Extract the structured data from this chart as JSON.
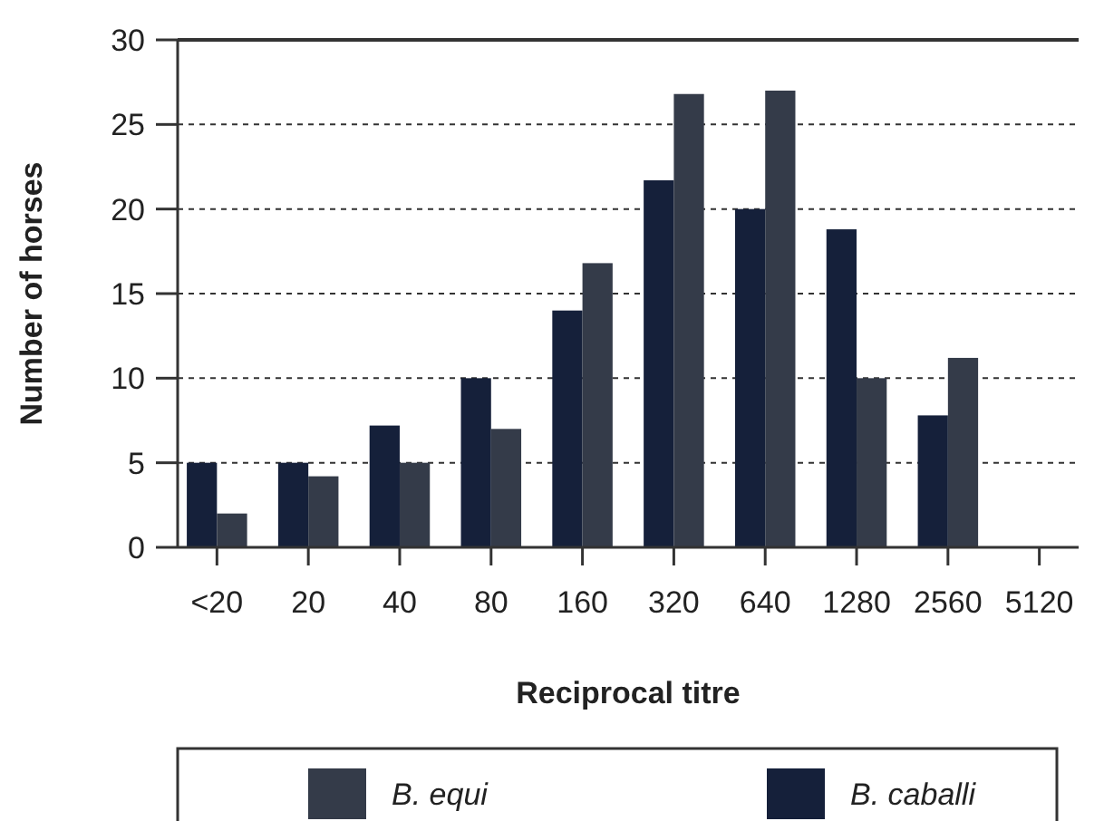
{
  "chart_data": {
    "type": "bar",
    "xlabel": "Reciprocal titre",
    "ylabel": "Number of horses",
    "categories": [
      "<20",
      "20",
      "40",
      "80",
      "160",
      "320",
      "640",
      "1280",
      "2560",
      "5120"
    ],
    "series": [
      {
        "name": "B. caballi",
        "color": "#15203a",
        "values": [
          5,
          5,
          7.2,
          10,
          14,
          21.7,
          20,
          18.8,
          7.8,
          0
        ]
      },
      {
        "name": "B. equi",
        "color": "#343b49",
        "values": [
          2,
          4.2,
          5,
          7,
          16.8,
          26.8,
          27,
          10,
          11.2,
          0
        ]
      }
    ],
    "ylim": [
      0,
      30
    ],
    "yticks": [
      0,
      5,
      10,
      15,
      20,
      25,
      30
    ],
    "grid": "y",
    "legend": "bottom"
  }
}
